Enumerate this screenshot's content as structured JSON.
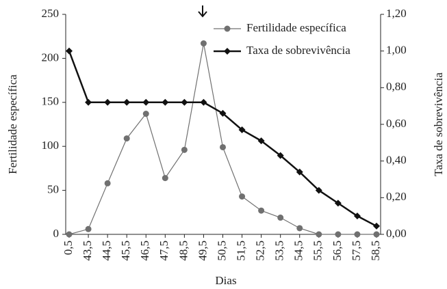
{
  "chart_data": {
    "type": "line",
    "x_label": "Dias",
    "y_label": "Fertilidade específica",
    "y2_label": "Taxa de sobrevivência",
    "categories": [
      "0,5",
      "43,5",
      "44,5",
      "45,5",
      "46,5",
      "47,5",
      "48,5",
      "49,5",
      "50,5",
      "51,5",
      "52,5",
      "53,5",
      "54,5",
      "55,5",
      "56,5",
      "57,5",
      "58,5"
    ],
    "series": [
      {
        "name": "Fertilidade específica",
        "color": "#707070",
        "marker": "circle",
        "values": [
          0,
          6,
          58,
          109,
          137,
          64,
          96,
          217,
          99,
          43,
          27,
          19,
          7,
          0,
          0,
          0,
          0
        ]
      },
      {
        "name": "Taxa de sobrevivência",
        "color": "#111111",
        "marker": "diamond",
        "axis": "y2",
        "values": [
          1.0,
          0.72,
          0.72,
          0.72,
          0.72,
          0.72,
          0.72,
          0.72,
          0.66,
          0.57,
          0.51,
          0.43,
          0.34,
          0.24,
          0.17,
          0.1,
          0.045
        ]
      }
    ],
    "ylim": [
      0,
      250
    ],
    "yticks": [
      0,
      50,
      100,
      150,
      200,
      250
    ],
    "y2lim": [
      0,
      1.2
    ],
    "y2ticks": [
      {
        "value": 0,
        "label": "0,00"
      },
      {
        "value": 0.2,
        "label": "0,20"
      },
      {
        "value": 0.4,
        "label": "0,40"
      },
      {
        "value": 0.6,
        "label": "0,60"
      },
      {
        "value": 0.8,
        "label": "0,80"
      },
      {
        "value": 1.0,
        "label": "1,00"
      },
      {
        "value": 1.2,
        "label": "1,20"
      }
    ]
  }
}
